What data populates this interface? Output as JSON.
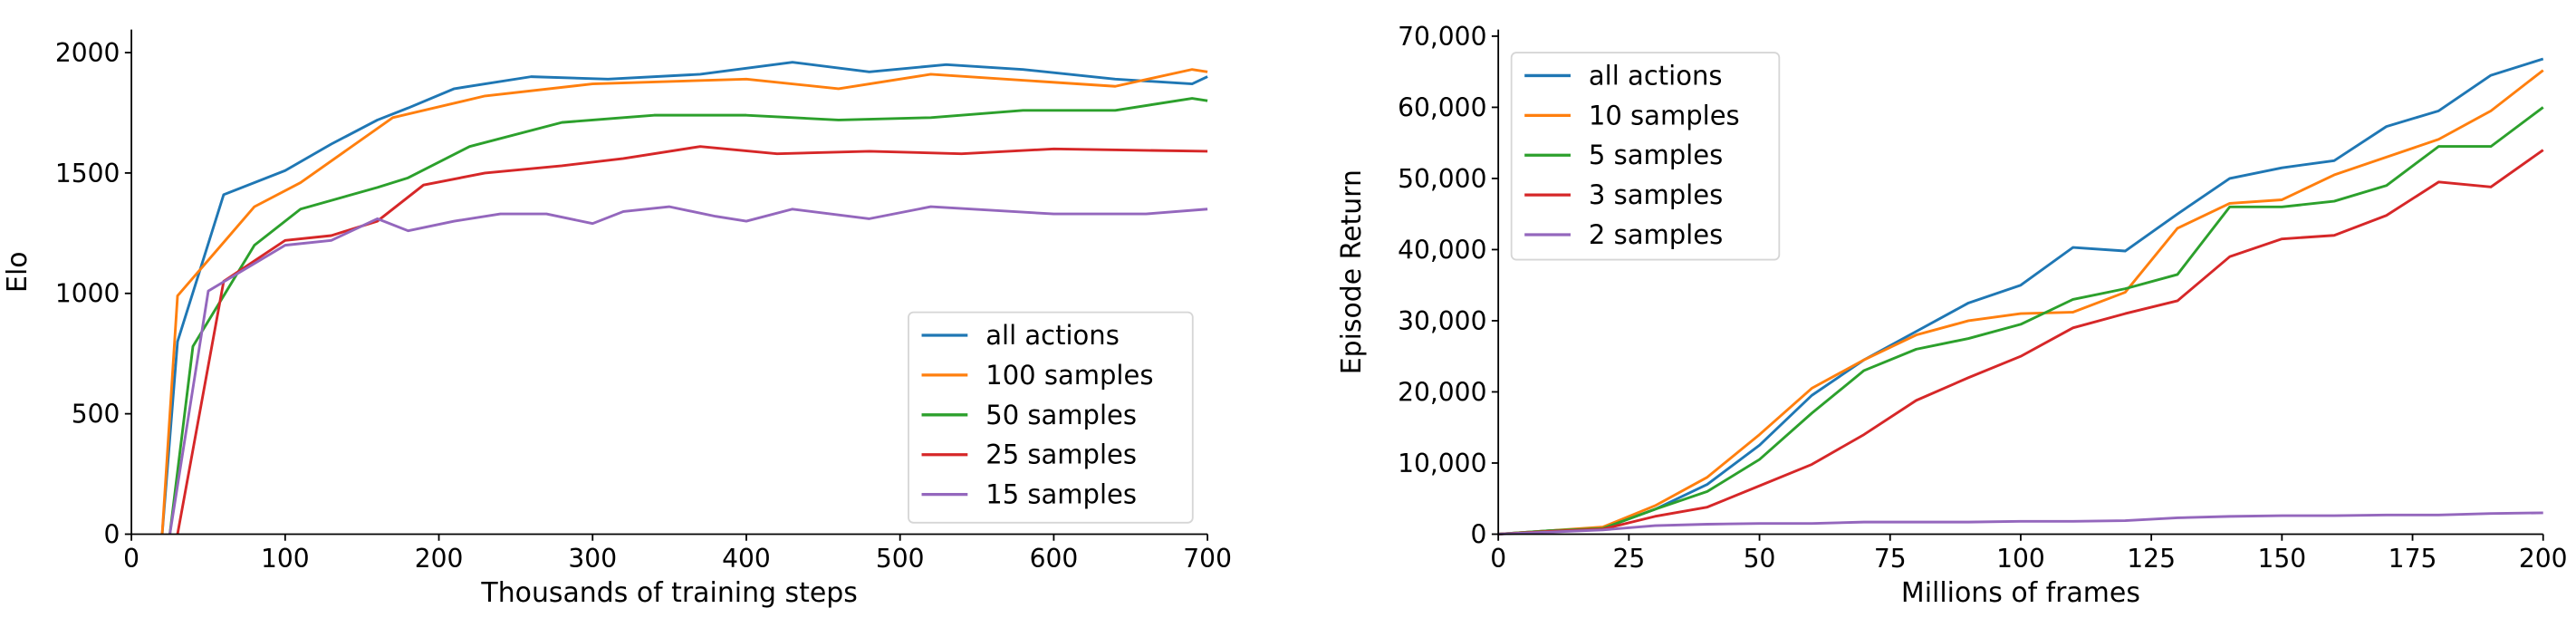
{
  "chart_data": [
    {
      "type": "line",
      "title": "",
      "xlabel": "Thousands of training steps",
      "ylabel": "Elo",
      "xlim": [
        0,
        700
      ],
      "ylim": [
        0,
        2100
      ],
      "xticks": [
        0,
        100,
        200,
        300,
        400,
        500,
        600,
        700
      ],
      "yticks": [
        0,
        500,
        1000,
        1500,
        2000
      ],
      "xtick_labels": [
        "0",
        "100",
        "200",
        "300",
        "400",
        "500",
        "600",
        "700"
      ],
      "ytick_labels": [
        "0",
        "500",
        "1000",
        "1500",
        "2000"
      ],
      "grid": false,
      "legend_position": "lower-right",
      "series": [
        {
          "name": "all actions",
          "color": "#1f77b4",
          "x": [
            20,
            30,
            60,
            100,
            130,
            160,
            180,
            210,
            230,
            260,
            310,
            370,
            430,
            480,
            530,
            580,
            640,
            690,
            700
          ],
          "y": [
            0,
            800,
            1410,
            1510,
            1620,
            1720,
            1770,
            1850,
            1870,
            1900,
            1890,
            1910,
            1960,
            1920,
            1950,
            1930,
            1890,
            1870,
            1900
          ]
        },
        {
          "name": "100 samples",
          "color": "#ff7f0e",
          "x": [
            20,
            30,
            80,
            110,
            170,
            230,
            300,
            400,
            460,
            520,
            640,
            690,
            700
          ],
          "y": [
            0,
            990,
            1360,
            1460,
            1730,
            1820,
            1870,
            1890,
            1850,
            1910,
            1860,
            1930,
            1920
          ]
        },
        {
          "name": "50 samples",
          "color": "#2ca02c",
          "x": [
            25,
            40,
            80,
            110,
            160,
            180,
            220,
            280,
            340,
            400,
            460,
            520,
            580,
            640,
            690,
            700
          ],
          "y": [
            0,
            780,
            1200,
            1350,
            1440,
            1480,
            1610,
            1710,
            1740,
            1740,
            1720,
            1730,
            1760,
            1760,
            1810,
            1800
          ]
        },
        {
          "name": "25 samples",
          "color": "#d62728",
          "x": [
            30,
            60,
            100,
            130,
            160,
            190,
            230,
            280,
            320,
            370,
            420,
            480,
            540,
            600,
            700
          ],
          "y": [
            0,
            1050,
            1220,
            1240,
            1300,
            1450,
            1500,
            1530,
            1560,
            1610,
            1580,
            1590,
            1580,
            1600,
            1590
          ]
        },
        {
          "name": "15 samples",
          "color": "#9467bd",
          "x": [
            25,
            50,
            100,
            130,
            160,
            180,
            210,
            240,
            270,
            300,
            320,
            350,
            380,
            400,
            430,
            480,
            520,
            600,
            660,
            700
          ],
          "y": [
            0,
            1010,
            1200,
            1220,
            1310,
            1260,
            1300,
            1330,
            1330,
            1290,
            1340,
            1360,
            1320,
            1300,
            1350,
            1310,
            1360,
            1330,
            1330,
            1350
          ]
        }
      ]
    },
    {
      "type": "line",
      "title": "",
      "xlabel": "Millions of frames",
      "ylabel": "Episode Return",
      "xlim": [
        0,
        200
      ],
      "ylim": [
        0,
        70000
      ],
      "xticks": [
        0,
        25,
        50,
        75,
        100,
        125,
        150,
        175,
        200
      ],
      "yticks": [
        0,
        10000,
        20000,
        30000,
        40000,
        50000,
        60000,
        70000
      ],
      "xtick_labels": [
        "0",
        "25",
        "50",
        "75",
        "100",
        "125",
        "150",
        "175",
        "200"
      ],
      "ytick_labels": [
        "0",
        "10,000",
        "20,000",
        "30,000",
        "40,000",
        "50,000",
        "60,000",
        "70,000"
      ],
      "grid": false,
      "legend_position": "upper-left",
      "x": [
        0,
        10,
        20,
        30,
        40,
        50,
        60,
        70,
        80,
        90,
        100,
        110,
        120,
        130,
        140,
        150,
        160,
        170,
        180,
        190,
        200
      ],
      "series": [
        {
          "name": "all actions",
          "color": "#1f77b4",
          "y": [
            0,
            500,
            800,
            3500,
            7000,
            12500,
            19500,
            24500,
            28500,
            32500,
            35000,
            40300,
            39800,
            45000,
            50000,
            51500,
            52500,
            57300,
            59500,
            64500,
            66800
          ]
        },
        {
          "name": "10 samples",
          "color": "#ff7f0e",
          "y": [
            0,
            500,
            1000,
            4000,
            8000,
            14000,
            20500,
            24500,
            28000,
            30000,
            31000,
            31200,
            34000,
            43000,
            46500,
            47000,
            50500,
            53000,
            55500,
            59500,
            65200
          ]
        },
        {
          "name": "5 samples",
          "color": "#2ca02c",
          "y": [
            0,
            500,
            800,
            3500,
            6000,
            10500,
            17000,
            23000,
            26000,
            27500,
            29500,
            33000,
            34500,
            36500,
            46000,
            46000,
            46800,
            49000,
            54500,
            54500,
            60000
          ]
        },
        {
          "name": "3 samples",
          "color": "#d62728",
          "y": [
            0,
            400,
            700,
            2500,
            3800,
            6800,
            9800,
            14000,
            18800,
            22000,
            25000,
            29000,
            31000,
            32800,
            39000,
            41500,
            42000,
            44800,
            49500,
            48800,
            54000
          ]
        },
        {
          "name": "2 samples",
          "color": "#9467bd",
          "y": [
            0,
            300,
            600,
            1200,
            1400,
            1500,
            1500,
            1700,
            1700,
            1700,
            1800,
            1800,
            1900,
            2300,
            2500,
            2600,
            2600,
            2700,
            2700,
            2900,
            3000
          ]
        }
      ]
    }
  ]
}
